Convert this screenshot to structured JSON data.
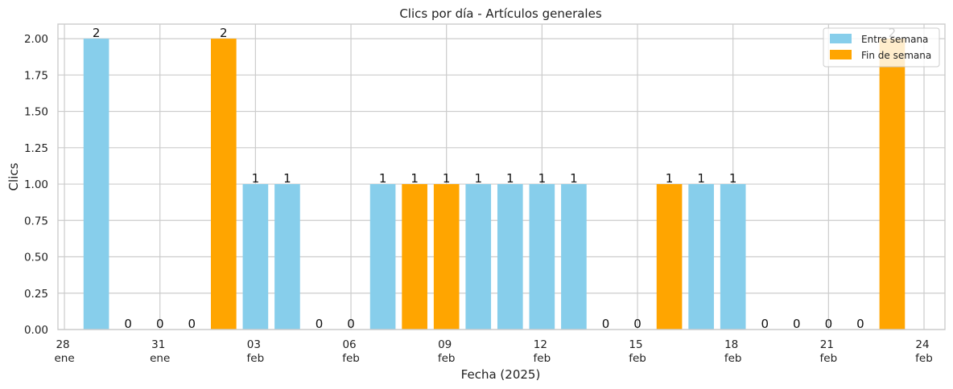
{
  "chart_data": {
    "type": "bar",
    "title": "Clics por día - Artículos generales",
    "xlabel": "Fecha (2025)",
    "ylabel": "Clics",
    "ylim": [
      0,
      2.1
    ],
    "yticks": [
      "0.00",
      "0.25",
      "0.50",
      "0.75",
      "1.00",
      "1.25",
      "1.50",
      "1.75",
      "2.00"
    ],
    "grid": true,
    "legend_position": "top-right",
    "colors": {
      "weekday": "#87ceeb",
      "weekend": "#ffa500"
    },
    "xticks": [
      {
        "day": "28",
        "month": "ene",
        "date": "2025-01-28"
      },
      {
        "day": "31",
        "month": "ene",
        "date": "2025-01-31"
      },
      {
        "day": "03",
        "month": "feb",
        "date": "2025-02-03"
      },
      {
        "day": "06",
        "month": "feb",
        "date": "2025-02-06"
      },
      {
        "day": "09",
        "month": "feb",
        "date": "2025-02-09"
      },
      {
        "day": "12",
        "month": "feb",
        "date": "2025-02-12"
      },
      {
        "day": "15",
        "month": "feb",
        "date": "2025-02-15"
      },
      {
        "day": "18",
        "month": "feb",
        "date": "2025-02-18"
      },
      {
        "day": "21",
        "month": "feb",
        "date": "2025-02-21"
      },
      {
        "day": "24",
        "month": "feb",
        "date": "2025-02-24"
      }
    ],
    "series": [
      {
        "name": "Entre semana",
        "color": "#87ceeb"
      },
      {
        "name": "Fin de semana",
        "color": "#ffa500"
      }
    ],
    "bars": [
      {
        "date": "2025-01-29",
        "value": 2,
        "label": "2",
        "series": "Entre semana"
      },
      {
        "date": "2025-01-30",
        "value": 0,
        "label": "0",
        "series": "Entre semana"
      },
      {
        "date": "2025-01-31",
        "value": 0,
        "label": "0",
        "series": "Entre semana"
      },
      {
        "date": "2025-02-01",
        "value": 0,
        "label": "0",
        "series": "Fin de semana"
      },
      {
        "date": "2025-02-02",
        "value": 2,
        "label": "2",
        "series": "Fin de semana"
      },
      {
        "date": "2025-02-03",
        "value": 1,
        "label": "1",
        "series": "Entre semana"
      },
      {
        "date": "2025-02-04",
        "value": 1,
        "label": "1",
        "series": "Entre semana"
      },
      {
        "date": "2025-02-05",
        "value": 0,
        "label": "0",
        "series": "Entre semana"
      },
      {
        "date": "2025-02-06",
        "value": 0,
        "label": "0",
        "series": "Entre semana"
      },
      {
        "date": "2025-02-07",
        "value": 1,
        "label": "1",
        "series": "Entre semana"
      },
      {
        "date": "2025-02-08",
        "value": 1,
        "label": "1",
        "series": "Fin de semana"
      },
      {
        "date": "2025-02-09",
        "value": 1,
        "label": "1",
        "series": "Fin de semana"
      },
      {
        "date": "2025-02-10",
        "value": 1,
        "label": "1",
        "series": "Entre semana"
      },
      {
        "date": "2025-02-11",
        "value": 1,
        "label": "1",
        "series": "Entre semana"
      },
      {
        "date": "2025-02-12",
        "value": 1,
        "label": "1",
        "series": "Entre semana"
      },
      {
        "date": "2025-02-13",
        "value": 1,
        "label": "1",
        "series": "Entre semana"
      },
      {
        "date": "2025-02-14",
        "value": 0,
        "label": "0",
        "series": "Entre semana"
      },
      {
        "date": "2025-02-15",
        "value": 0,
        "label": "0",
        "series": "Fin de semana"
      },
      {
        "date": "2025-02-16",
        "value": 1,
        "label": "1",
        "series": "Fin de semana"
      },
      {
        "date": "2025-02-17",
        "value": 1,
        "label": "1",
        "series": "Entre semana"
      },
      {
        "date": "2025-02-18",
        "value": 1,
        "label": "1",
        "series": "Entre semana"
      },
      {
        "date": "2025-02-19",
        "value": 0,
        "label": "0",
        "series": "Entre semana"
      },
      {
        "date": "2025-02-20",
        "value": 0,
        "label": "0",
        "series": "Entre semana"
      },
      {
        "date": "2025-02-21",
        "value": 0,
        "label": "0",
        "series": "Entre semana"
      },
      {
        "date": "2025-02-22",
        "value": 0,
        "label": "0",
        "series": "Fin de semana"
      },
      {
        "date": "2025-02-23",
        "value": 2,
        "label": "2",
        "series": "Fin de semana"
      }
    ]
  }
}
